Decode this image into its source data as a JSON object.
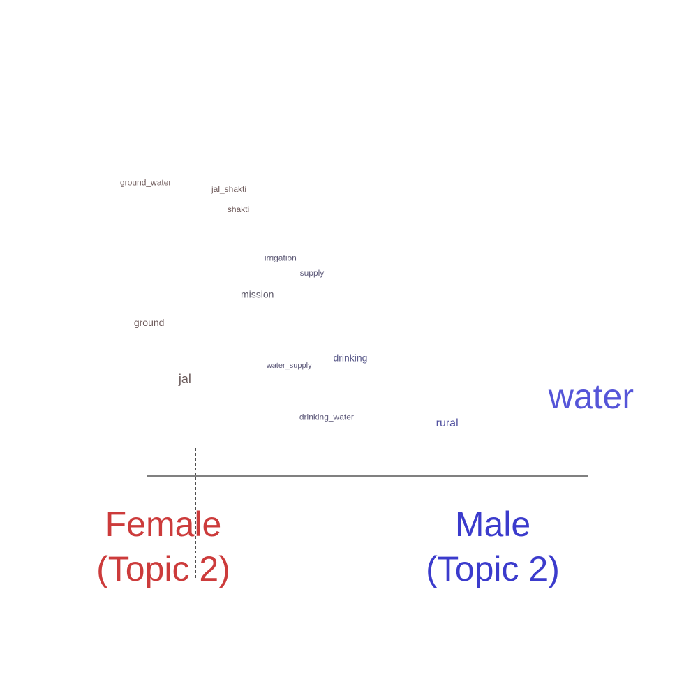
{
  "chart_data": {
    "type": "scatter",
    "title": "",
    "xlabel": "",
    "ylabel": "",
    "groups": {
      "left": {
        "label_line1": "Female",
        "label_line2": "(Topic 2)",
        "color": "#cc3b3b"
      },
      "right": {
        "label_line1": "Male",
        "label_line2": "(Topic 2)",
        "color": "#3b3bcc"
      }
    },
    "xlim": [
      0,
      1
    ],
    "ylim": [
      0,
      1
    ],
    "words": [
      {
        "text": "ground_water",
        "x": 0.0,
        "y": 0.78,
        "size": 12,
        "color": "#6e5a5a"
      },
      {
        "text": "jal_shakti",
        "x": 0.178,
        "y": 0.76,
        "size": 12,
        "color": "#6e5a5a"
      },
      {
        "text": "shakti",
        "x": 0.209,
        "y": 0.7,
        "size": 12,
        "color": "#6e5a5a"
      },
      {
        "text": "irrigation",
        "x": 0.281,
        "y": 0.555,
        "size": 12,
        "color": "#5e5a76"
      },
      {
        "text": "supply",
        "x": 0.35,
        "y": 0.51,
        "size": 12,
        "color": "#5e5a7a"
      },
      {
        "text": "mission",
        "x": 0.235,
        "y": 0.445,
        "size": 14,
        "color": "#5e5a6a"
      },
      {
        "text": "ground",
        "x": 0.027,
        "y": 0.36,
        "size": 14,
        "color": "#6e5a5a"
      },
      {
        "text": "drinking",
        "x": 0.415,
        "y": 0.255,
        "size": 14,
        "color": "#5a5a8a"
      },
      {
        "text": "water_supply",
        "x": 0.285,
        "y": 0.235,
        "size": 11,
        "color": "#5e5a7a"
      },
      {
        "text": "jal",
        "x": 0.114,
        "y": 0.19,
        "size": 18,
        "color": "#6a5a5a"
      },
      {
        "text": "drinking_water",
        "x": 0.349,
        "y": 0.08,
        "size": 12,
        "color": "#5e5a7a"
      },
      {
        "text": "rural",
        "x": 0.615,
        "y": 0.06,
        "size": 16,
        "color": "#5252a0"
      },
      {
        "text": "water",
        "x": 1.0,
        "y": 0.115,
        "size": 50,
        "color": "#5555d8"
      }
    ],
    "reference_x": 0.147,
    "grid": false,
    "legend": "none"
  }
}
